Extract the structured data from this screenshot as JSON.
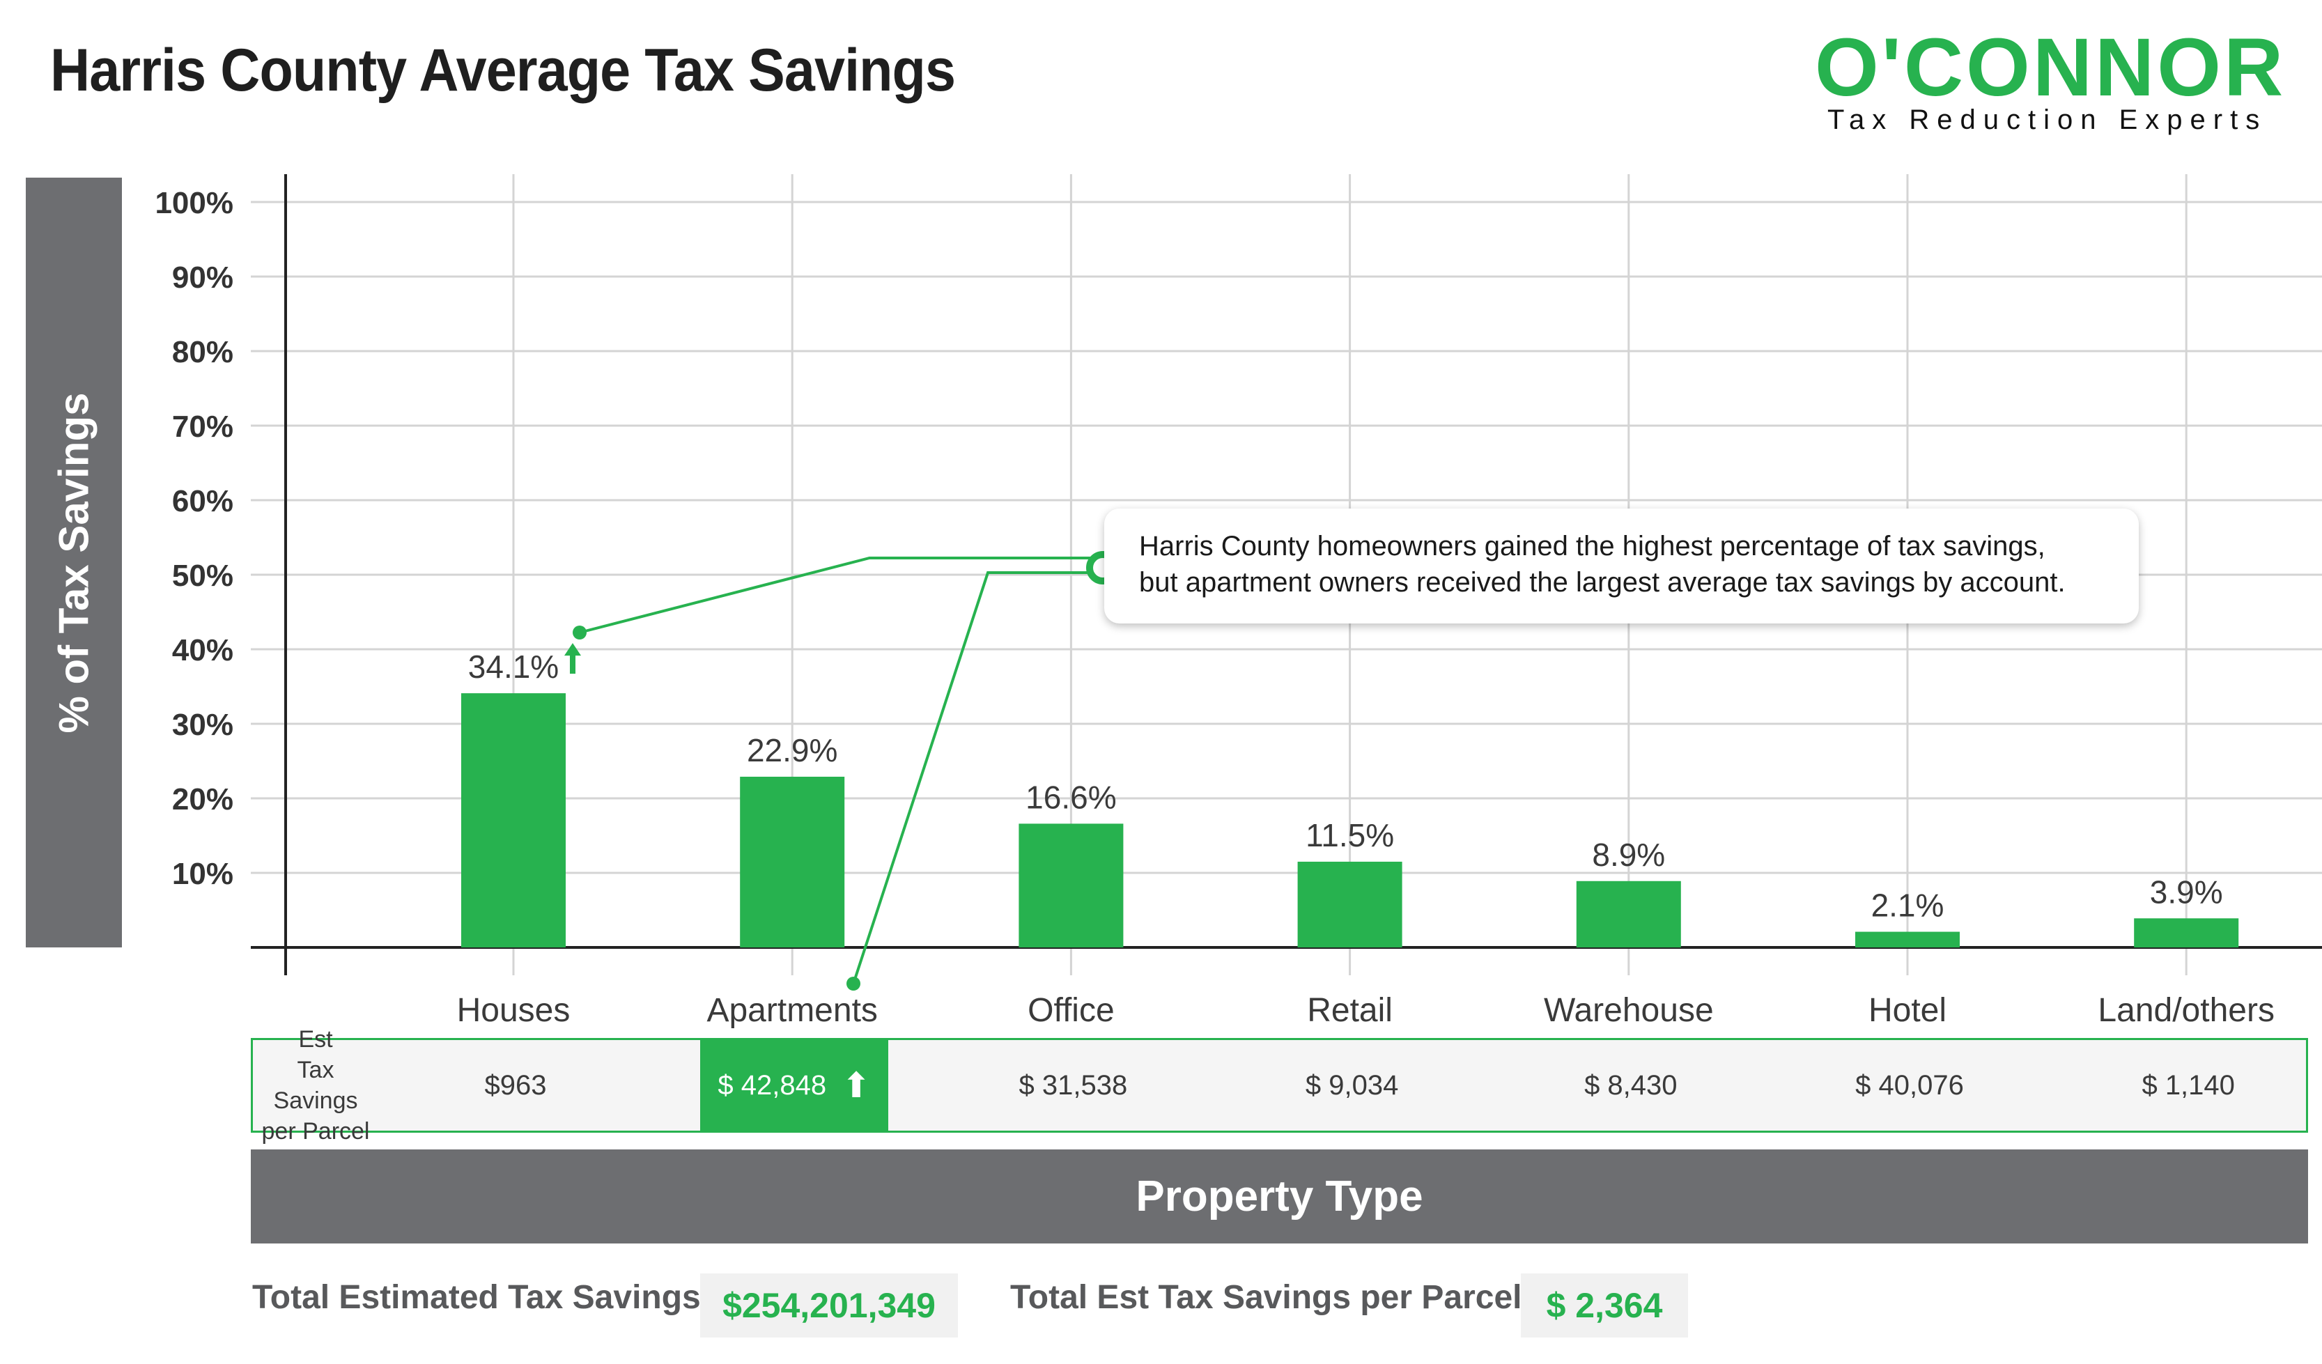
{
  "title": "Harris County Average Tax Savings",
  "logo": {
    "name": "O'CONNOR",
    "tagline": "Tax Reduction Experts"
  },
  "colors": {
    "accent": "#27b24f",
    "panel_gray": "#6d6e71",
    "grid": "#d4d4d4",
    "text": "#3a3a3a"
  },
  "callout": {
    "line1": "Harris County homeowners gained the highest percentage of tax savings,",
    "line2": "but apartment owners received the largest average tax savings by account."
  },
  "table": {
    "row_header": [
      "Est",
      "Tax Savings",
      "per Parcel"
    ],
    "values": [
      "$963",
      "$ 42,848",
      "$ 31,538",
      "$ 9,034",
      "$ 8,430",
      "$ 40,076",
      "$ 1,140"
    ],
    "highlight_index": 1,
    "highlight_icon": "up-arrow-icon"
  },
  "x_axis_title": "Property Type",
  "totals": {
    "total_label": "Total Estimated Tax Savings",
    "total_value": "$254,201,349",
    "per_parcel_label": "Total Est Tax Savings per Parcel",
    "per_parcel_value": "$ 2,364"
  },
  "chart_data": {
    "type": "bar",
    "title": "Harris County Average Tax Savings",
    "xlabel": "Property Type",
    "ylabel": "% of Tax Savings",
    "categories": [
      "Houses",
      "Apartments",
      "Office",
      "Retail",
      "Warehouse",
      "Hotel",
      "Land/others"
    ],
    "values": [
      34.1,
      22.9,
      16.6,
      11.5,
      8.9,
      2.1,
      3.9
    ],
    "value_labels": [
      "34.1%",
      "22.9%",
      "16.6%",
      "11.5%",
      "8.9%",
      "2.1%",
      "3.9%"
    ],
    "highlight_index": 0,
    "highlight_icon": "up-arrow-icon",
    "ylim": [
      0,
      100
    ],
    "yticks": [
      10,
      20,
      30,
      40,
      50,
      60,
      70,
      80,
      90,
      100
    ],
    "ytick_labels": [
      "10%",
      "20%",
      "30%",
      "40%",
      "50%",
      "60%",
      "70%",
      "80%",
      "90%",
      "100%"
    ],
    "grid": true,
    "legend": "none"
  }
}
